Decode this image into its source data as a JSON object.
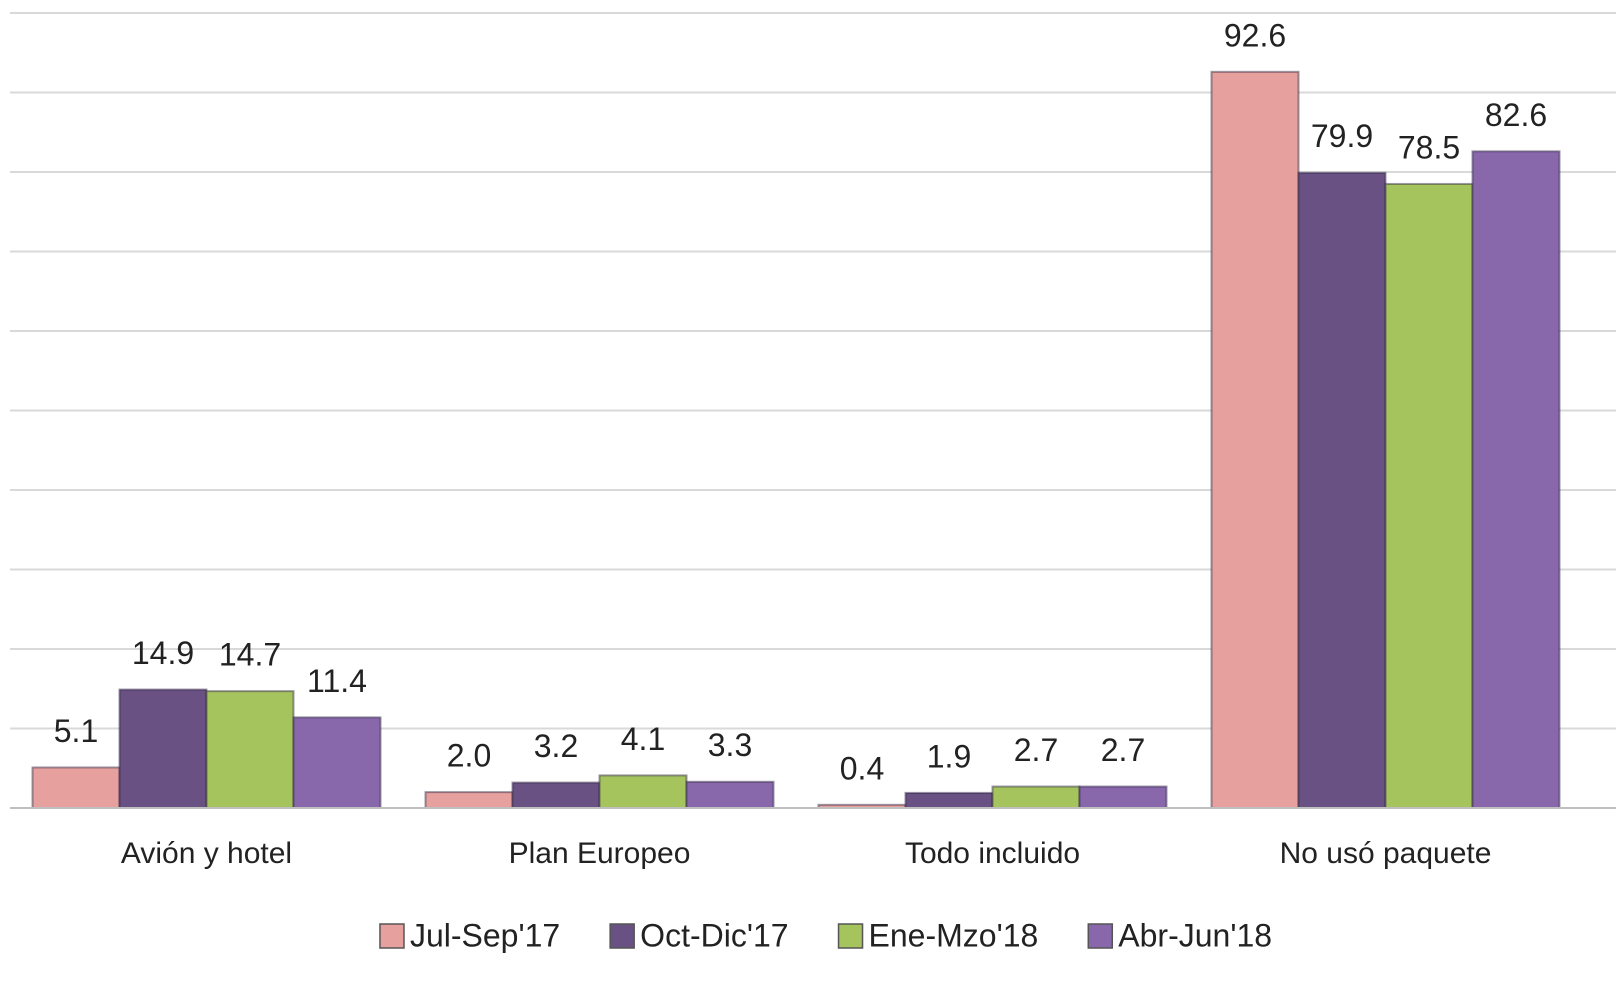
{
  "chart_data": {
    "type": "bar",
    "categories": [
      "Avión y hotel",
      "Plan Europeo",
      "Todo incluido",
      "No usó paquete"
    ],
    "series": [
      {
        "name": "Jul-Sep'17",
        "color": "#e6a19f",
        "values": [
          5.1,
          2.0,
          0.4,
          92.6
        ],
        "value_labels": [
          "5.1",
          "2.0",
          "0.4",
          "92.6"
        ]
      },
      {
        "name": "Oct-Dic'17",
        "color": "#6a5183",
        "values": [
          14.9,
          3.2,
          1.9,
          79.9
        ],
        "value_labels": [
          "14.9",
          "3.2",
          "1.9",
          "79.9"
        ]
      },
      {
        "name": "Ene-Mzo'18",
        "color": "#a5c45e",
        "values": [
          14.7,
          4.1,
          2.7,
          78.5
        ],
        "value_labels": [
          "14.7",
          "4.1",
          "2.7",
          "78.5"
        ]
      },
      {
        "name": "Abr-Jun'18",
        "color": "#8868ab",
        "values": [
          11.4,
          3.3,
          2.7,
          82.6
        ],
        "value_labels": [
          "11.4",
          "3.3",
          "2.7",
          "82.6"
        ]
      }
    ],
    "ylim": [
      0,
      100
    ],
    "yticks": [
      0,
      10,
      20,
      30,
      40,
      50,
      60,
      70,
      80,
      90,
      100
    ],
    "grid": true,
    "legend": "bottom"
  }
}
